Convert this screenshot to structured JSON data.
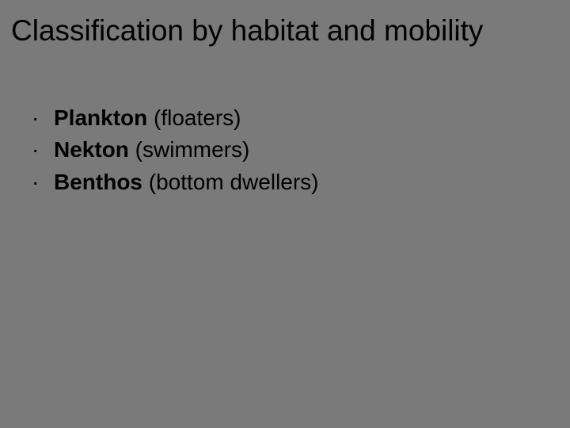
{
  "slide": {
    "background_color": "#7a7a7a",
    "text_color": "#000000",
    "title_fontsize": 37,
    "body_fontsize": 28,
    "font_family": "Comic Sans MS",
    "title": "Classification by habitat and mobility",
    "bullets": [
      {
        "term": "Plankton",
        "desc": " (floaters)"
      },
      {
        "term": "Nekton",
        "desc": " (swimmers)"
      },
      {
        "term": "Benthos",
        "desc": " (bottom dwellers)"
      }
    ]
  }
}
